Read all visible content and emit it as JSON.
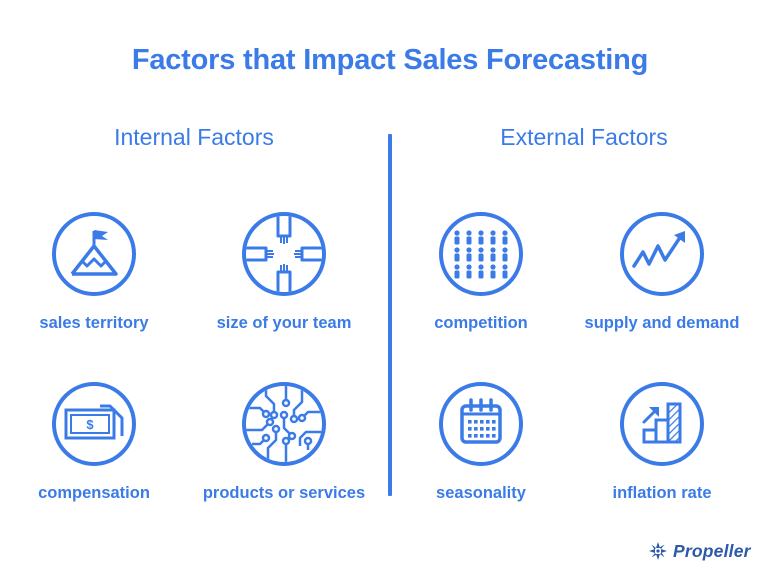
{
  "title": "Factors that Impact Sales Forecasting",
  "internal": {
    "heading": "Internal Factors",
    "factors": [
      {
        "label": "sales territory",
        "icon": "mountain-flag-icon"
      },
      {
        "label": "size of your team",
        "icon": "team-hands-icon"
      },
      {
        "label": "compensation",
        "icon": "dollar-bill-icon"
      },
      {
        "label": "products or services",
        "icon": "circuit-icon"
      }
    ]
  },
  "external": {
    "heading": "External Factors",
    "factors": [
      {
        "label": "competition",
        "icon": "crowd-icon"
      },
      {
        "label": "supply and demand",
        "icon": "trend-arrow-icon"
      },
      {
        "label": "seasonality",
        "icon": "calendar-icon"
      },
      {
        "label": "inflation rate",
        "icon": "rising-bars-icon"
      }
    ]
  },
  "brand": {
    "name": "Propeller",
    "icon": "propeller-logo-icon"
  },
  "colors": {
    "accent": "#3b7be8",
    "brand": "#2c5aa8"
  }
}
